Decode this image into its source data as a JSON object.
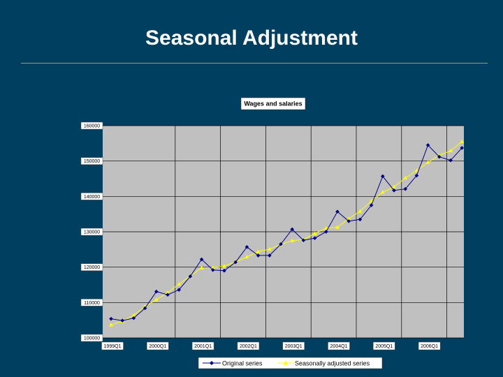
{
  "slide": {
    "title": "Seasonal Adjustment"
  },
  "colors": {
    "background": "#003f5f",
    "plot_area": "#c0c0c0",
    "original_series": "#000080",
    "adjusted_series": "#ffff00"
  },
  "chart_data": {
    "type": "line",
    "title": "Wages and salaries",
    "xlabel": "",
    "ylabel": "",
    "ylim": [
      100000,
      160000
    ],
    "yticks": [
      "160000",
      "150000",
      "140000",
      "130000",
      "120000",
      "110000",
      "100000"
    ],
    "ytick_values": [
      160000,
      150000,
      140000,
      130000,
      120000,
      110000,
      100000
    ],
    "xtick_labels": [
      "1999Q1",
      "2000Q1",
      "2001Q1",
      "2002Q1",
      "2003Q1",
      "2004Q1",
      "2005Q1",
      "2006Q1"
    ],
    "xtick_index": [
      0,
      4,
      8,
      12,
      16,
      20,
      24,
      28
    ],
    "grid": "horizontal and vertical at each year start",
    "legend_position": "bottom",
    "series": [
      {
        "name": "Original series",
        "marker": "diamond",
        "values": [
          105400,
          104900,
          105600,
          108400,
          113100,
          112200,
          113600,
          117400,
          122200,
          119200,
          119000,
          121400,
          125700,
          123300,
          123300,
          126500,
          130700,
          127600,
          128200,
          130000,
          135700,
          133000,
          133500,
          137500,
          145700,
          141700,
          142100,
          145900,
          154500,
          151200,
          150200,
          153700
        ]
      },
      {
        "name": "Seasonally adjusted series",
        "marker": "triangle",
        "values": [
          103700,
          104700,
          106400,
          108900,
          110800,
          112800,
          115200,
          117500,
          119800,
          119900,
          120300,
          121500,
          122900,
          124400,
          125100,
          126400,
          127500,
          127800,
          129500,
          131000,
          131300,
          133700,
          135800,
          138700,
          141200,
          142700,
          145200,
          147300,
          149600,
          151600,
          152900,
          155500
        ]
      }
    ]
  }
}
